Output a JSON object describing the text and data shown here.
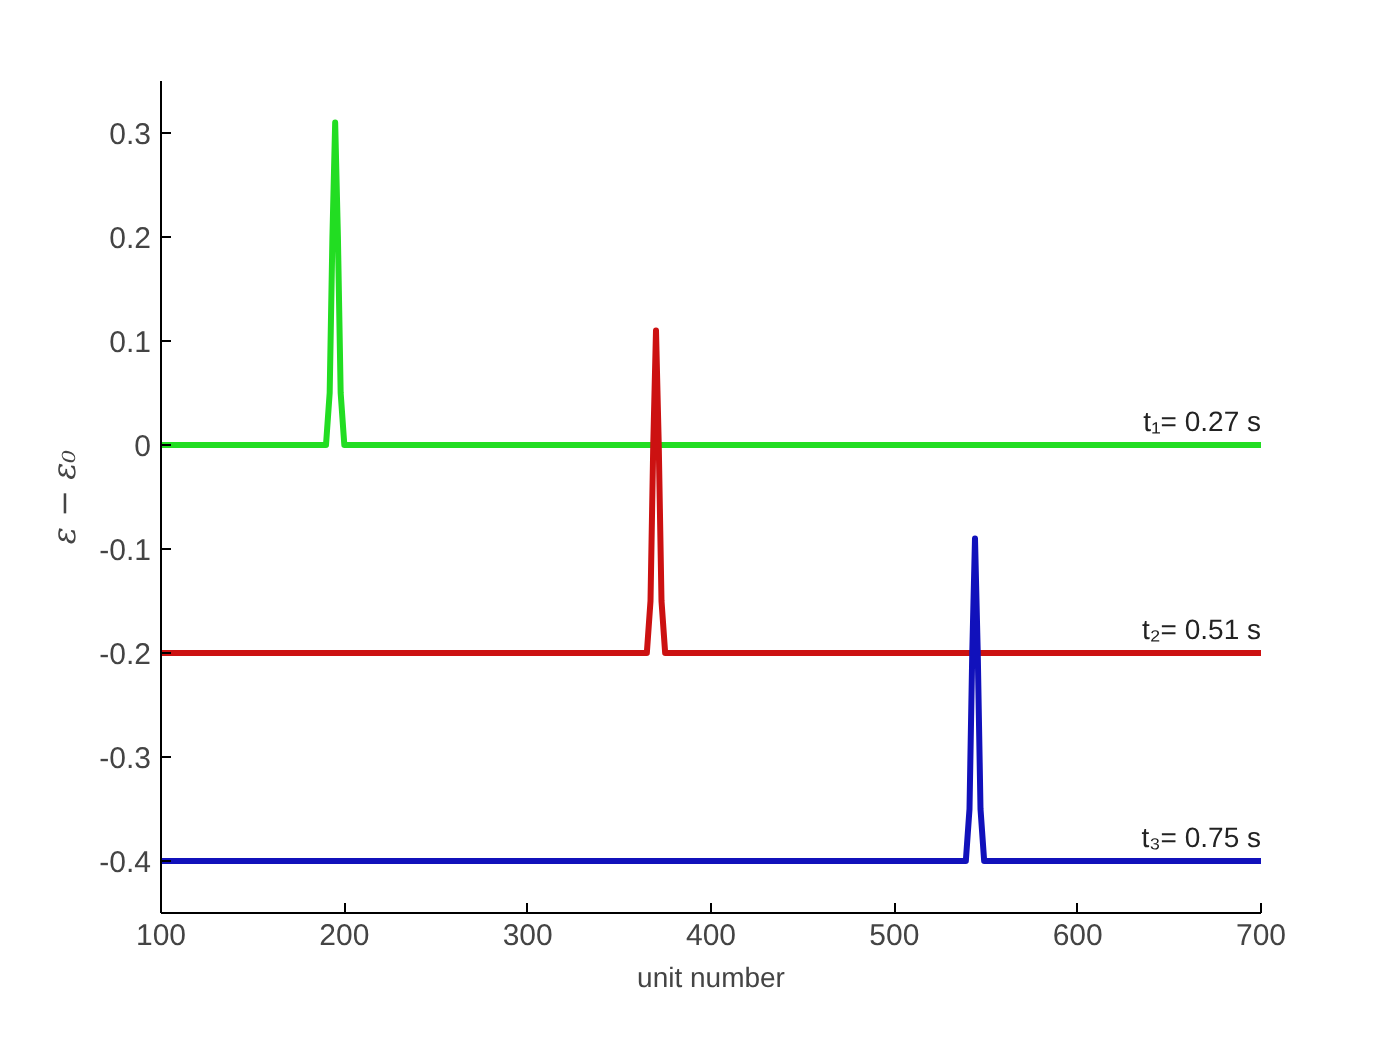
{
  "chart_data": {
    "type": "line",
    "xlabel": "unit number",
    "ylabel": "ε − ε₀",
    "xlim": [
      100,
      700
    ],
    "xticks": [
      100,
      200,
      300,
      400,
      500,
      600,
      700
    ],
    "ylim": [
      -0.45,
      0.35
    ],
    "yticks": [
      -0.4,
      -0.3,
      -0.2,
      -0.1,
      0,
      0.1,
      0.2,
      0.3
    ],
    "grid": false,
    "series": [
      {
        "name": "t₁= 0.27 s",
        "color": "#22dd22",
        "x": [
          100,
          190,
          192,
          193.5,
          195,
          196.5,
          198,
          200,
          700
        ],
        "values": [
          0,
          0,
          0.05,
          0.2,
          0.31,
          0.2,
          0.05,
          0,
          0
        ]
      },
      {
        "name": "t₂= 0.51 s",
        "color": "#cc1111",
        "x": [
          100,
          365,
          367,
          368.5,
          370,
          371.5,
          373,
          375,
          700
        ],
        "values": [
          -0.2,
          -0.2,
          -0.15,
          0,
          0.11,
          0,
          -0.15,
          -0.2,
          -0.2
        ]
      },
      {
        "name": "t₃= 0.75 s",
        "color": "#1111bb",
        "x": [
          100,
          539,
          541,
          542.5,
          544,
          545.5,
          547,
          549,
          700
        ],
        "values": [
          -0.4,
          -0.4,
          -0.35,
          -0.2,
          -0.09,
          -0.2,
          -0.35,
          -0.4,
          -0.4
        ]
      }
    ]
  }
}
